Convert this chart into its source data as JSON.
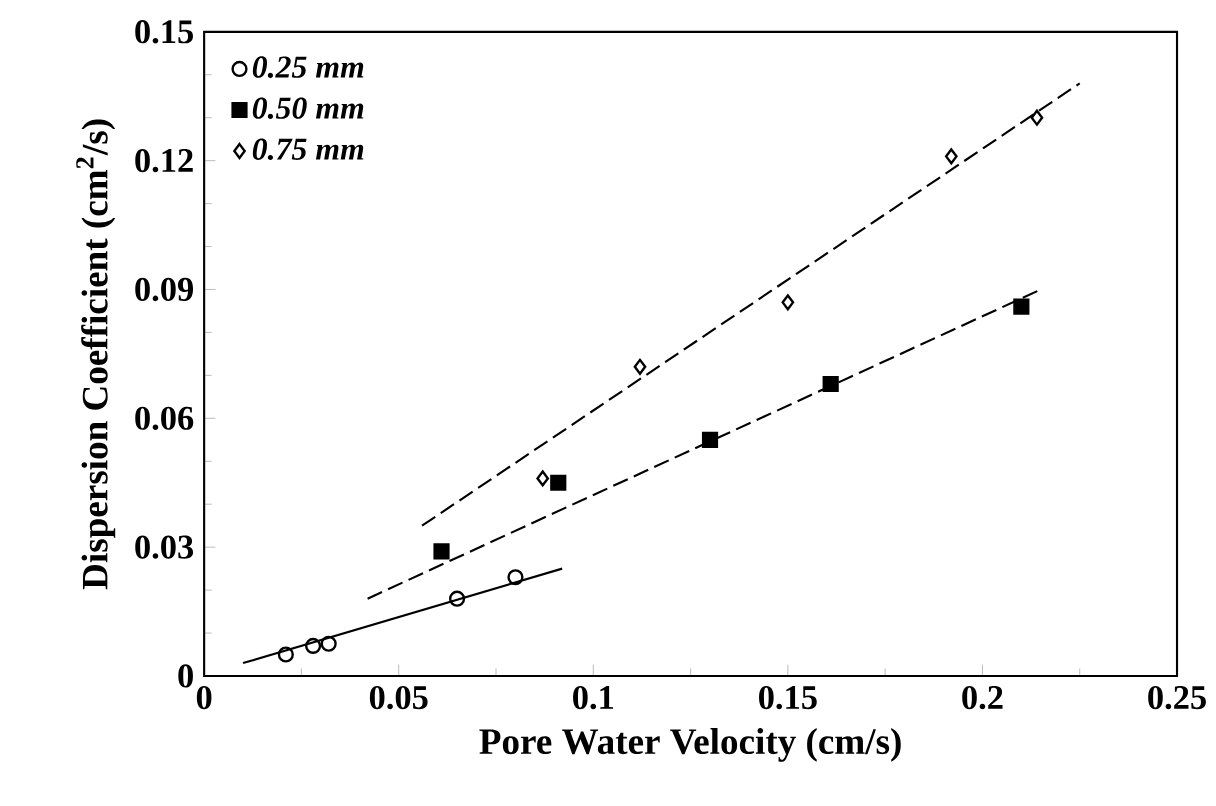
{
  "chart_data": {
    "type": "scatter",
    "xlabel": "Pore Water Velocity (cm/s)",
    "ylabel": "Dispersion Coefficient (cm$^{2}$/s)",
    "xlim": [
      0,
      0.25
    ],
    "xticks": [
      0,
      0.05,
      0.1,
      0.15,
      0.2,
      0.25
    ],
    "ylim": [
      0,
      0.15
    ],
    "yticks": [
      0,
      0.03,
      0.06,
      0.09,
      0.12,
      0.15
    ],
    "grid": false,
    "legend": "top left",
    "series": [
      {
        "name": "0.25 mm",
        "marker": "circle",
        "color": "#000000",
        "x": [
          0.021,
          0.028,
          0.032,
          0.065,
          0.08
        ],
        "values": [
          0.005,
          0.007,
          0.0075,
          0.018,
          0.023
        ]
      },
      {
        "name": "0.50 mm",
        "marker": "square",
        "color": "#000000",
        "x": [
          0.061,
          0.091,
          0.13,
          0.161,
          0.21
        ],
        "values": [
          0.029,
          0.045,
          0.055,
          0.068,
          0.086
        ]
      },
      {
        "name": "0.75 mm",
        "marker": "diamond",
        "color": "#000000",
        "x": [
          0.087,
          0.112,
          0.15,
          0.192,
          0.214
        ],
        "values": [
          0.046,
          0.072,
          0.087,
          0.121,
          0.13
        ]
      },
      {
        "type": "line",
        "line_style": "solid",
        "color": "#000000",
        "x": [
          0.01,
          0.092
        ],
        "values": [
          0.003,
          0.025
        ]
      },
      {
        "type": "line",
        "line_style": "dashed",
        "color": "#000000",
        "x": [
          0.042,
          0.215
        ],
        "values": [
          0.018,
          0.09
        ]
      },
      {
        "type": "line",
        "line_style": "dashed",
        "color": "#000000",
        "x": [
          0.056,
          0.225
        ],
        "values": [
          0.035,
          0.138
        ]
      }
    ]
  }
}
